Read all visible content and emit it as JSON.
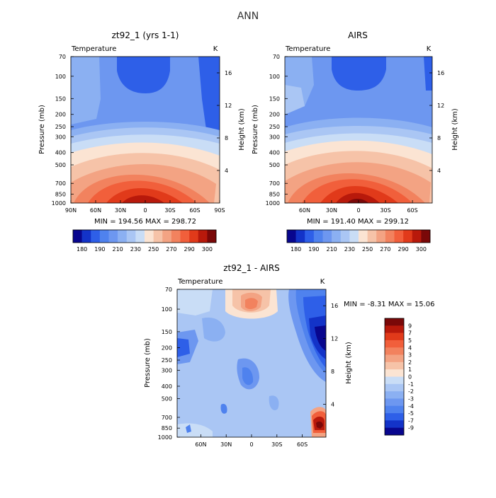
{
  "figure": {
    "suptitle": "ANN"
  },
  "chart_data": [
    {
      "type": "heatmap",
      "panel": "model",
      "title": "zt92_1 (yrs 1-1)",
      "left_label": "Temperature",
      "right_label": "K",
      "xlabel": "",
      "ylabel": "Pressure (mb)",
      "y2label": "Height (km)",
      "x_ticks": [
        "90N",
        "60N",
        "30N",
        "0",
        "30S",
        "60S",
        "90S"
      ],
      "y_ticks": [
        "70",
        "100",
        "150",
        "200",
        "250",
        "300",
        "400",
        "500",
        "700",
        "850",
        "1000"
      ],
      "y2_ticks": [
        "16",
        "12",
        "8",
        "4"
      ],
      "stats": "MIN = 194.56   MAX = 298.72",
      "min": 194.56,
      "max": 298.72,
      "colorbar_ticks": [
        "180",
        "190",
        "210",
        "230",
        "250",
        "270",
        "290",
        "300"
      ]
    },
    {
      "type": "heatmap",
      "panel": "obs",
      "title": "AIRS",
      "left_label": "Temperature",
      "right_label": "K",
      "xlabel": "",
      "ylabel": "Pressure (mb)",
      "y2label": "Height (km)",
      "x_ticks": [
        "60N",
        "30N",
        "0",
        "30S",
        "60S"
      ],
      "y_ticks": [
        "70",
        "100",
        "150",
        "200",
        "250",
        "300",
        "400",
        "500",
        "700",
        "850",
        "1000"
      ],
      "y2_ticks": [
        "16",
        "12",
        "8",
        "4"
      ],
      "stats": "MIN = 191.40   MAX = 299.12",
      "min": 191.4,
      "max": 299.12,
      "colorbar_ticks": [
        "180",
        "190",
        "210",
        "230",
        "250",
        "270",
        "290",
        "300"
      ]
    },
    {
      "type": "heatmap",
      "panel": "diff",
      "title": "zt92_1 - AIRS",
      "left_label": "Temperature",
      "right_label": "K",
      "xlabel": "",
      "ylabel": "Pressure (mb)",
      "y2label": "Height (km)",
      "x_ticks": [
        "60N",
        "30N",
        "0",
        "30S",
        "60S"
      ],
      "y_ticks": [
        "70",
        "100",
        "150",
        "200",
        "250",
        "300",
        "400",
        "500",
        "700",
        "850",
        "1000"
      ],
      "y2_ticks": [
        "16",
        "12",
        "8",
        "4"
      ],
      "stats": "MIN =  -8.31   MAX =  15.06",
      "min": -8.31,
      "max": 15.06,
      "colorbar_ticks": [
        "9",
        "7",
        "5",
        "4",
        "3",
        "2",
        "1",
        "0",
        "-1",
        "-2",
        "-3",
        "-4",
        "-5",
        "-7",
        "-9"
      ]
    }
  ],
  "colors": {
    "abs_palette": [
      "#08068e",
      "#1333c8",
      "#2e5fe8",
      "#4f82ee",
      "#6d97f0",
      "#8bb0f2",
      "#aac6f4",
      "#c9ddf6",
      "#fbe4d3",
      "#f6c3a8",
      "#f3a383",
      "#f2825e",
      "#f15f3b",
      "#e13a1a",
      "#b8190b",
      "#7a0808"
    ],
    "diff_palette": [
      "#7a0808",
      "#b8190b",
      "#e13a1a",
      "#f15f3b",
      "#f2825e",
      "#f3a383",
      "#f6c3a8",
      "#fbe4d3",
      "#c9ddf6",
      "#aac6f4",
      "#8bb0f2",
      "#6d97f0",
      "#4f82ee",
      "#2e5fe8",
      "#1333c8",
      "#08068e"
    ]
  }
}
